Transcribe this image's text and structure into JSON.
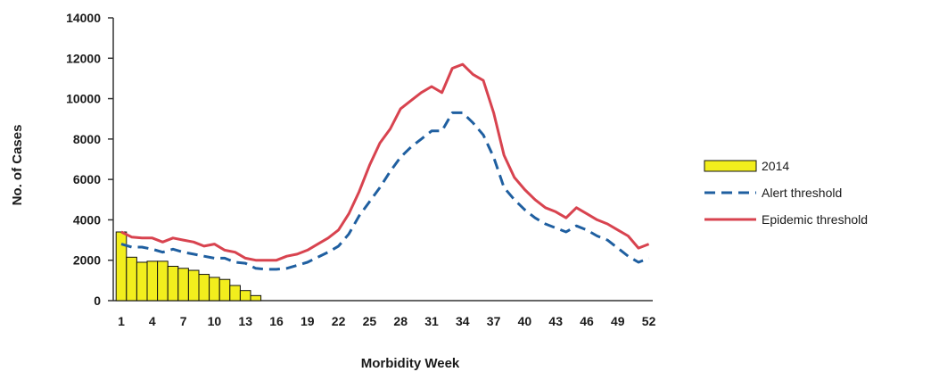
{
  "chart_data": {
    "type": "bar",
    "xlabel": "Morbidity Week",
    "ylabel": "No. of Cases",
    "ylim": [
      0,
      14000
    ],
    "yticks": [
      0,
      2000,
      4000,
      6000,
      8000,
      10000,
      12000,
      14000
    ],
    "xlim": [
      1,
      52
    ],
    "xticks": [
      1,
      4,
      7,
      10,
      13,
      16,
      19,
      22,
      25,
      28,
      31,
      34,
      37,
      40,
      43,
      46,
      49,
      52
    ],
    "legend_position": "right",
    "bars": {
      "name": "2014",
      "color": "#f2ee1d",
      "weeks": [
        1,
        2,
        3,
        4,
        5,
        6,
        7,
        8,
        9,
        10,
        11,
        12,
        13,
        14
      ],
      "values": [
        3400,
        2150,
        1900,
        1950,
        1950,
        1700,
        1600,
        1500,
        1300,
        1150,
        1050,
        750,
        500,
        250
      ]
    },
    "series": [
      {
        "name": "Alert threshold",
        "color": "#1f5fa0",
        "style": "dashed",
        "x": [
          1,
          2,
          3,
          4,
          5,
          6,
          7,
          8,
          9,
          10,
          11,
          12,
          13,
          14,
          15,
          16,
          17,
          18,
          19,
          20,
          21,
          22,
          23,
          24,
          25,
          26,
          27,
          28,
          29,
          30,
          31,
          32,
          33,
          34,
          35,
          36,
          37,
          38,
          39,
          40,
          41,
          42,
          43,
          44,
          45,
          46,
          47,
          48,
          49,
          50,
          51,
          52
        ],
        "values": [
          2800,
          2650,
          2650,
          2550,
          2400,
          2550,
          2400,
          2300,
          2200,
          2100,
          2100,
          1900,
          1850,
          1600,
          1550,
          1550,
          1600,
          1750,
          1900,
          2150,
          2400,
          2700,
          3300,
          4200,
          4900,
          5600,
          6400,
          7100,
          7600,
          8000,
          8400,
          8400,
          9300,
          9300,
          8800,
          8200,
          7100,
          5600,
          5000,
          4500,
          4100,
          3800,
          3600,
          3400,
          3700,
          3500,
          3200,
          3000,
          2600,
          2200,
          1900,
          2100
        ]
      },
      {
        "name": "Epidemic threshold",
        "color": "#d8434f",
        "style": "solid",
        "x": [
          1,
          2,
          3,
          4,
          5,
          6,
          7,
          8,
          9,
          10,
          11,
          12,
          13,
          14,
          15,
          16,
          17,
          18,
          19,
          20,
          21,
          22,
          23,
          24,
          25,
          26,
          27,
          28,
          29,
          30,
          31,
          32,
          33,
          34,
          35,
          36,
          37,
          38,
          39,
          40,
          41,
          42,
          43,
          44,
          45,
          46,
          47,
          48,
          49,
          50,
          51,
          52
        ],
        "values": [
          3400,
          3150,
          3100,
          3100,
          2900,
          3100,
          3000,
          2900,
          2700,
          2800,
          2500,
          2400,
          2100,
          2000,
          2000,
          2000,
          2200,
          2300,
          2500,
          2800,
          3100,
          3500,
          4300,
          5400,
          6700,
          7800,
          8500,
          9500,
          9900,
          10300,
          10600,
          10300,
          11500,
          11700,
          11200,
          10900,
          9300,
          7200,
          6100,
          5500,
          5000,
          4600,
          4400,
          4100,
          4600,
          4300,
          4000,
          3800,
          3500,
          3200,
          2600,
          2800
        ]
      }
    ]
  }
}
